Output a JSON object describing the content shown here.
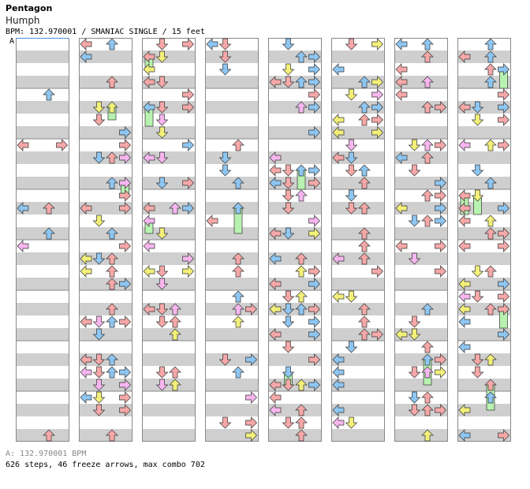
{
  "header": {
    "artist": "Pentagon",
    "song": "Humph",
    "info": "BPM: 132.970001 / SMANIAC SINGLE / 15 feet",
    "section_label": "A"
  },
  "footer": {
    "bpm": "A: 132.970001 BPM",
    "stats": "626 steps, 46 freeze arrows, max combo 702"
  },
  "colors": {
    "stripe": "#cfcfcf",
    "background": "#ffffff",
    "column_border": "#888888",
    "measure_line": "#888888",
    "arrow_quarter": "#f6a8a8",
    "arrow_eighth": "#8ec6f2",
    "arrow_sixteenth": "#f3f07a",
    "arrow_other": "#f7b6ef",
    "freeze": "#b8f2b0",
    "outline": "#333333"
  },
  "chart_data": {
    "type": "table",
    "columns": 8,
    "lanes": [
      "left",
      "down",
      "up",
      "right"
    ],
    "measures_per_column": 8
  }
}
